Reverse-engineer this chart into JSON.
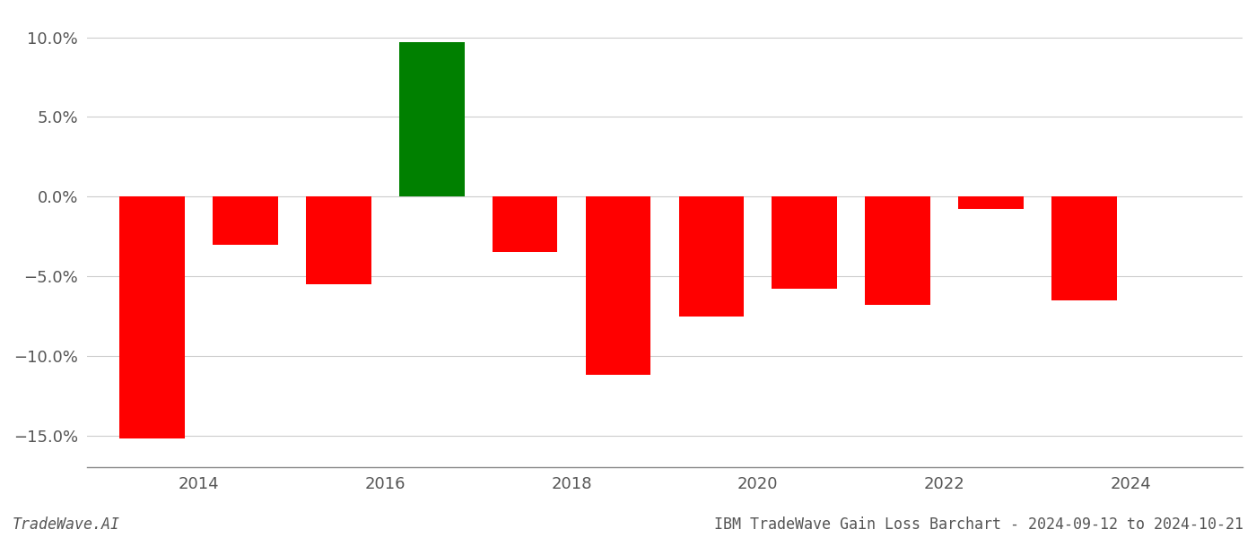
{
  "years": [
    2013.5,
    2014.5,
    2015.5,
    2016.5,
    2017.5,
    2018.5,
    2019.5,
    2020.5,
    2021.5,
    2022.5,
    2023.5
  ],
  "values": [
    -15.2,
    -3.0,
    -5.5,
    9.7,
    -3.5,
    -11.2,
    -7.5,
    -5.8,
    -6.8,
    -0.8,
    -6.5
  ],
  "colors": [
    "#ff0000",
    "#ff0000",
    "#ff0000",
    "#008000",
    "#ff0000",
    "#ff0000",
    "#ff0000",
    "#ff0000",
    "#ff0000",
    "#ff0000",
    "#ff0000"
  ],
  "title": "IBM TradeWave Gain Loss Barchart - 2024-09-12 to 2024-10-21",
  "watermark": "TradeWave.AI",
  "ylim": [
    -17.0,
    11.5
  ],
  "yticks": [
    -15.0,
    -10.0,
    -5.0,
    0.0,
    5.0,
    10.0
  ],
  "xticks": [
    2014,
    2016,
    2018,
    2020,
    2022,
    2024
  ],
  "xlim": [
    2012.8,
    2025.2
  ],
  "background_color": "#ffffff",
  "grid_color": "#cccccc",
  "bar_width": 0.7
}
